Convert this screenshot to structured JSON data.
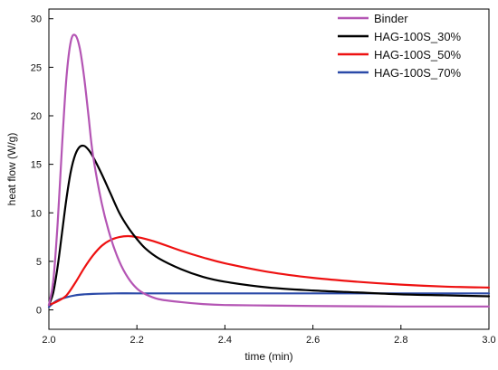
{
  "chart_data": {
    "type": "line",
    "title": "",
    "xlabel": "time (min)",
    "ylabel": "heat flow (W/g)",
    "xlim": [
      2.0,
      3.0
    ],
    "ylim": [
      -2,
      31
    ],
    "x_ticks": [
      2.0,
      2.2,
      2.4,
      2.6,
      2.8,
      3.0
    ],
    "x_tick_labels": [
      "2.0",
      "2.2",
      "2.4",
      "2.6",
      "2.8",
      "3.0"
    ],
    "y_ticks": [
      0,
      5,
      10,
      15,
      20,
      25,
      30
    ],
    "y_tick_labels": [
      "0",
      "5",
      "10",
      "15",
      "20",
      "25",
      "30"
    ],
    "grid": false,
    "legend_position": "top-right",
    "series": [
      {
        "name": "Binder",
        "color": "#b455b4",
        "x": [
          2.0,
          2.01,
          2.02,
          2.03,
          2.04,
          2.05,
          2.06,
          2.07,
          2.08,
          2.09,
          2.1,
          2.12,
          2.14,
          2.16,
          2.18,
          2.2,
          2.22,
          2.25,
          2.3,
          2.35,
          2.4,
          2.5,
          2.6,
          2.8,
          3.0
        ],
        "y": [
          0.5,
          3.0,
          9.0,
          17.0,
          24.0,
          27.7,
          28.3,
          27.0,
          24.0,
          20.0,
          16.0,
          11.0,
          7.5,
          5.0,
          3.3,
          2.2,
          1.6,
          1.1,
          0.8,
          0.6,
          0.5,
          0.45,
          0.4,
          0.35,
          0.35
        ]
      },
      {
        "name": "HAG-100S_30%",
        "color": "#000000",
        "x": [
          2.0,
          2.01,
          2.02,
          2.03,
          2.04,
          2.05,
          2.06,
          2.07,
          2.08,
          2.09,
          2.1,
          2.12,
          2.14,
          2.16,
          2.18,
          2.2,
          2.22,
          2.25,
          2.3,
          2.35,
          2.4,
          2.5,
          2.6,
          2.7,
          2.8,
          2.9,
          3.0
        ],
        "y": [
          0.5,
          1.8,
          4.5,
          8.0,
          11.5,
          14.3,
          16.0,
          16.8,
          16.9,
          16.5,
          15.8,
          14.0,
          12.0,
          10.0,
          8.5,
          7.3,
          6.3,
          5.3,
          4.2,
          3.4,
          2.9,
          2.3,
          2.0,
          1.8,
          1.6,
          1.5,
          1.4
        ]
      },
      {
        "name": "HAG-100S_50%",
        "color": "#ee1111",
        "x": [
          2.0,
          2.02,
          2.04,
          2.06,
          2.08,
          2.1,
          2.12,
          2.14,
          2.16,
          2.18,
          2.2,
          2.22,
          2.25,
          2.3,
          2.35,
          2.4,
          2.5,
          2.6,
          2.7,
          2.8,
          2.9,
          3.0
        ],
        "y": [
          0.5,
          0.9,
          1.5,
          2.8,
          4.3,
          5.6,
          6.6,
          7.2,
          7.5,
          7.6,
          7.5,
          7.3,
          6.9,
          6.1,
          5.4,
          4.8,
          3.9,
          3.3,
          2.9,
          2.6,
          2.4,
          2.3
        ]
      },
      {
        "name": "HAG-100S_70%",
        "color": "#2b4aa8",
        "x": [
          2.0,
          2.01,
          2.02,
          2.04,
          2.06,
          2.08,
          2.1,
          2.15,
          2.2,
          2.3,
          2.4,
          2.5,
          2.6,
          2.7,
          2.8,
          2.9,
          3.0
        ],
        "y": [
          0.3,
          0.7,
          1.0,
          1.3,
          1.5,
          1.6,
          1.65,
          1.7,
          1.7,
          1.7,
          1.7,
          1.7,
          1.7,
          1.7,
          1.7,
          1.7,
          1.7
        ]
      }
    ]
  }
}
